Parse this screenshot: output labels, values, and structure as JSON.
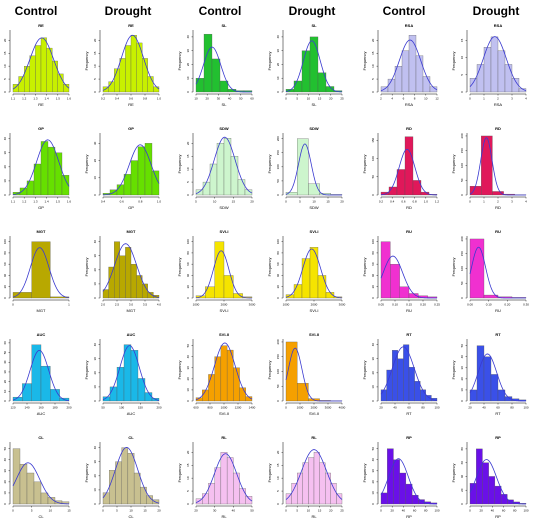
{
  "headers": [
    "Control",
    "Drought",
    "Control",
    "Drought",
    "Control",
    "Drought"
  ],
  "chart_data": [
    {
      "type": "histogram",
      "title": "RE",
      "xlabel": "RE",
      "ylabel": "Frequency",
      "color": "#c8f000",
      "xticks": [
        "1.1",
        "1.2",
        "1.3",
        "1.4",
        "1.5",
        "1.6"
      ],
      "yticks": [
        "0",
        "5",
        "10",
        "15",
        "20"
      ],
      "ylim": [
        0,
        24
      ],
      "values": [
        3,
        6,
        10,
        14,
        18,
        21,
        17,
        12,
        7,
        3
      ]
    },
    {
      "type": "histogram",
      "title": "RE",
      "xlabel": "RE",
      "ylabel": "Frequency",
      "color": "#c8f000",
      "xticks": [
        "0.2",
        "0.4",
        "0.6",
        "0.8",
        "1.0"
      ],
      "yticks": [
        "0",
        "5",
        "10",
        "15",
        "20"
      ],
      "ylim": [
        0,
        24
      ],
      "values": [
        2,
        4,
        9,
        13,
        18,
        22,
        19,
        13,
        6,
        2
      ]
    },
    {
      "type": "histogram",
      "title": "SL",
      "xlabel": "SL",
      "ylabel": "Frequency",
      "color": "#22c030",
      "xticks": [
        "10",
        "20",
        "30",
        "40",
        "50",
        "60"
      ],
      "yticks": [
        "0",
        "10",
        "20",
        "30",
        "40"
      ],
      "ylim": [
        0,
        45
      ],
      "values": [
        10,
        42,
        24,
        8,
        2,
        1,
        1
      ]
    },
    {
      "type": "histogram",
      "title": "SL",
      "xlabel": "SL",
      "ylabel": "Frequency",
      "color": "#22c030",
      "xticks": [
        "0",
        "5",
        "10",
        "15",
        "20",
        "25"
      ],
      "yticks": [
        "0",
        "10",
        "20",
        "30",
        "40"
      ],
      "ylim": [
        0,
        45
      ],
      "values": [
        2,
        8,
        30,
        40,
        14,
        4,
        1
      ]
    },
    {
      "type": "histogram",
      "title": "RSA",
      "xlabel": "RSA",
      "ylabel": "Frequency",
      "color": "#c0c0f0",
      "xticks": [
        "2",
        "4",
        "6",
        "8",
        "10",
        "12"
      ],
      "yticks": [
        "0",
        "5",
        "10",
        "15",
        "20"
      ],
      "ylim": [
        0,
        24
      ],
      "values": [
        2,
        5,
        10,
        16,
        22,
        14,
        6,
        2
      ]
    },
    {
      "type": "histogram",
      "title": "RSA",
      "xlabel": "RSA",
      "ylabel": "Frequency",
      "color": "#c0c0f0",
      "xticks": [
        "0",
        "1",
        "2",
        "3",
        "4"
      ],
      "yticks": [
        "0",
        "5",
        "10",
        "15"
      ],
      "ylim": [
        0,
        18
      ],
      "values": [
        4,
        8,
        13,
        16,
        12,
        8,
        4,
        1
      ]
    },
    {
      "type": "histogram",
      "title": "GP",
      "xlabel": "GP",
      "ylabel": "Frequency",
      "color": "#66e000",
      "xticks": [
        "1.1",
        "1.2",
        "1.3",
        "1.4",
        "1.5",
        "1.6"
      ],
      "yticks": [
        "0",
        "10",
        "20",
        "30",
        "40"
      ],
      "ylim": [
        0,
        44
      ],
      "values": [
        2,
        5,
        10,
        22,
        38,
        34,
        30,
        14
      ]
    },
    {
      "type": "histogram",
      "title": "GP",
      "xlabel": "GP",
      "ylabel": "Frequency",
      "color": "#66e000",
      "xticks": [
        "0.4",
        "0.6",
        "0.8",
        "1.0"
      ],
      "yticks": [
        "0",
        "10",
        "20",
        "30"
      ],
      "ylim": [
        0,
        36
      ],
      "values": [
        1,
        3,
        6,
        12,
        20,
        28,
        30,
        14
      ]
    },
    {
      "type": "histogram",
      "title": "SDW",
      "xlabel": "SDW",
      "ylabel": "Frequency",
      "color": "#cdf5cd",
      "xticks": [
        "5",
        "10",
        "15",
        "20"
      ],
      "yticks": [
        "0",
        "5",
        "10",
        "15",
        "20"
      ],
      "ylim": [
        0,
        24
      ],
      "values": [
        2,
        5,
        12,
        20,
        22,
        15,
        6,
        2
      ]
    },
    {
      "type": "histogram",
      "title": "SDW",
      "xlabel": "SDW",
      "ylabel": "Frequency",
      "color": "#cdf5cd",
      "xticks": [
        "0",
        "5",
        "10",
        "15",
        "20"
      ],
      "yticks": [
        "0",
        "50",
        "100",
        "150",
        "200"
      ],
      "ylim": [
        0,
        220
      ],
      "values": [
        10,
        200,
        40,
        6,
        2
      ]
    },
    {
      "type": "histogram",
      "title": "RD",
      "xlabel": "RD",
      "ylabel": "Frequency",
      "color": "#e0185a",
      "xticks": [
        "0.2",
        "0.4",
        "0.6",
        "0.8",
        "1.0",
        "1.2"
      ],
      "yticks": [
        "0",
        "50",
        "100",
        "150"
      ],
      "ylim": [
        0,
        170
      ],
      "values": [
        8,
        22,
        70,
        160,
        40,
        8,
        2
      ]
    },
    {
      "type": "histogram",
      "title": "RD",
      "xlabel": "RD",
      "ylabel": "Frequency",
      "color": "#e0185a",
      "xticks": [
        "0",
        "1",
        "2",
        "3",
        "4"
      ],
      "yticks": [
        "0",
        "50",
        "100",
        "150",
        "200"
      ],
      "ylim": [
        0,
        210
      ],
      "values": [
        30,
        200,
        12,
        3,
        1
      ]
    },
    {
      "type": "histogram",
      "title": "MGT",
      "xlabel": "MGT",
      "ylabel": "Frequency",
      "color": "#b8a800",
      "xticks": [
        "0",
        "1"
      ],
      "yticks": [
        "0",
        "20",
        "40",
        "60",
        "80",
        "100"
      ],
      "ylim": [
        0,
        110
      ],
      "values": [
        10,
        100,
        2
      ]
    },
    {
      "type": "histogram",
      "title": "MGT",
      "xlabel": "MGT",
      "ylabel": "Frequency",
      "color": "#b8a800",
      "xticks": [
        "2.0",
        "2.5",
        "3.0",
        "3.5",
        "4.0"
      ],
      "yticks": [
        "0",
        "10",
        "20",
        "30",
        "40"
      ],
      "ylim": [
        0,
        44
      ],
      "values": [
        6,
        22,
        40,
        30,
        36,
        24,
        16,
        10,
        4,
        2
      ]
    },
    {
      "type": "histogram",
      "title": "SVI-I",
      "xlabel": "SVI-I",
      "ylabel": "Frequency",
      "color": "#f5e400",
      "xticks": [
        "1000",
        "2000",
        "3000"
      ],
      "yticks": [
        "0",
        "20",
        "40",
        "60",
        "80",
        "100"
      ],
      "ylim": [
        0,
        110
      ],
      "values": [
        4,
        20,
        100,
        40,
        8,
        2
      ]
    },
    {
      "type": "histogram",
      "title": "SVI-I",
      "xlabel": "SVI-I",
      "ylabel": "Frequency",
      "color": "#f5e400",
      "xticks": [
        "1000",
        "2000",
        "3000"
      ],
      "yticks": [
        "0",
        "20",
        "40",
        "60",
        "80",
        "100"
      ],
      "ylim": [
        0,
        110
      ],
      "values": [
        6,
        24,
        70,
        90,
        40,
        10,
        2
      ]
    },
    {
      "type": "histogram",
      "title": "RU",
      "xlabel": "RU",
      "ylabel": "Frequency",
      "color": "#f030d0",
      "xticks": [
        "0.05",
        "0.10",
        "0.15",
        "0.20",
        "0.25"
      ],
      "yticks": [
        "0",
        "20",
        "40",
        "60",
        "80",
        "100"
      ],
      "ylim": [
        0,
        110
      ],
      "values": [
        100,
        60,
        20,
        8,
        4,
        2
      ]
    },
    {
      "type": "histogram",
      "title": "RU",
      "xlabel": "RU",
      "ylabel": "Frequency",
      "color": "#f030d0",
      "xticks": [
        "0.00",
        "0.10",
        "0.20",
        "0.30"
      ],
      "yticks": [
        "0",
        "50",
        "100",
        "150",
        "200"
      ],
      "ylim": [
        0,
        210
      ],
      "values": [
        200,
        10,
        4,
        2
      ]
    },
    {
      "type": "histogram",
      "title": "AUC",
      "xlabel": "AUC",
      "ylabel": "Frequency",
      "color": "#1ab8e8",
      "xticks": [
        "120",
        "140",
        "160",
        "180",
        "200"
      ],
      "yticks": [
        "0",
        "10",
        "20",
        "30",
        "40",
        "50",
        "60"
      ],
      "ylim": [
        0,
        64
      ],
      "values": [
        4,
        18,
        58,
        36,
        12,
        3
      ]
    },
    {
      "type": "histogram",
      "title": "AUC",
      "xlabel": "AUC",
      "ylabel": "Frequency",
      "color": "#1ab8e8",
      "xticks": [
        "50",
        "100",
        "150",
        "200"
      ],
      "yticks": [
        "0",
        "10",
        "20",
        "30",
        "40"
      ],
      "ylim": [
        0,
        44
      ],
      "values": [
        3,
        10,
        24,
        40,
        36,
        16,
        6,
        2
      ]
    },
    {
      "type": "histogram",
      "title": "SVI-II",
      "xlabel": "SVI-II",
      "ylabel": "Frequency",
      "color": "#f5a000",
      "xticks": [
        "600",
        "800",
        "1000",
        "1200",
        "1400"
      ],
      "yticks": [
        "0",
        "10",
        "20",
        "30",
        "40",
        "50"
      ],
      "ylim": [
        0,
        56
      ],
      "values": [
        3,
        10,
        24,
        40,
        50,
        46,
        30,
        12,
        4
      ]
    },
    {
      "type": "histogram",
      "title": "SVI-II",
      "xlabel": "SVI-II",
      "ylabel": "Frequency",
      "color": "#f5a000",
      "xticks": [
        "0",
        "1000",
        "2000",
        "3000",
        "4000"
      ],
      "yticks": [
        "0",
        "50",
        "100",
        "150",
        "200"
      ],
      "ylim": [
        0,
        210
      ],
      "values": [
        200,
        60,
        8,
        2,
        1
      ]
    },
    {
      "type": "histogram",
      "title": "RT",
      "xlabel": "RT",
      "ylabel": "Frequency",
      "color": "#3a50e8",
      "xticks": [
        "20",
        "40",
        "60",
        "80",
        "100"
      ],
      "yticks": [
        "0",
        "10",
        "20",
        "30",
        "40"
      ],
      "ylim": [
        0,
        44
      ],
      "values": [
        8,
        22,
        36,
        30,
        40,
        24,
        14,
        8,
        4,
        2
      ]
    },
    {
      "type": "histogram",
      "title": "RT",
      "xlabel": "RT",
      "ylabel": "Frequency",
      "color": "#3a50e8",
      "xticks": [
        "20",
        "40",
        "60",
        "80",
        "100"
      ],
      "yticks": [
        "0",
        "10",
        "20",
        "30",
        "40",
        "50"
      ],
      "ylim": [
        0,
        56
      ],
      "values": [
        10,
        50,
        40,
        24,
        10,
        4,
        2,
        1
      ]
    },
    {
      "type": "histogram",
      "title": "CL",
      "xlabel": "CL",
      "ylabel": "Frequency",
      "color": "#c8c090",
      "xticks": [
        "0",
        "5",
        "10",
        "15"
      ],
      "yticks": [
        "0",
        "10",
        "20",
        "30",
        "40",
        "50"
      ],
      "ylim": [
        0,
        56
      ],
      "values": [
        50,
        36,
        28,
        20,
        10,
        6,
        3,
        2
      ]
    },
    {
      "type": "histogram",
      "title": "CL",
      "xlabel": "CL",
      "ylabel": "Frequency",
      "color": "#c8c090",
      "xticks": [
        "0",
        "5",
        "10",
        "15",
        "20"
      ],
      "yticks": [
        "0",
        "10",
        "20",
        "30",
        "40"
      ],
      "ylim": [
        0,
        44
      ],
      "values": [
        8,
        24,
        30,
        40,
        36,
        22,
        12,
        6,
        3
      ]
    },
    {
      "type": "histogram",
      "title": "RL",
      "xlabel": "RL",
      "ylabel": "Frequency",
      "color": "#f5c0f0",
      "xticks": [
        "20",
        "30",
        "40",
        "50"
      ],
      "yticks": [
        "0",
        "5",
        "10",
        "15",
        "20"
      ],
      "ylim": [
        0,
        24
      ],
      "values": [
        2,
        4,
        8,
        14,
        20,
        18,
        12,
        6,
        3
      ]
    },
    {
      "type": "histogram",
      "title": "RL",
      "xlabel": "RL",
      "ylabel": "Frequency",
      "color": "#f5c0f0",
      "xticks": [
        "0",
        "5",
        "10",
        "15",
        "20",
        "25"
      ],
      "yticks": [
        "0",
        "5",
        "10",
        "15",
        "20"
      ],
      "ylim": [
        0,
        24
      ],
      "values": [
        4,
        8,
        12,
        16,
        18,
        20,
        16,
        12,
        8,
        4
      ]
    },
    {
      "type": "histogram",
      "title": "RP",
      "xlabel": "RP",
      "ylabel": "Frequency",
      "color": "#6a10e8",
      "xticks": [
        "0",
        "20",
        "40",
        "60",
        "80",
        "100"
      ],
      "yticks": [
        "0",
        "10",
        "20",
        "30",
        "40",
        "50"
      ],
      "ylim": [
        0,
        56
      ],
      "values": [
        10,
        50,
        40,
        28,
        18,
        8,
        4,
        2,
        1
      ]
    },
    {
      "type": "histogram",
      "title": "RP",
      "xlabel": "RP",
      "ylabel": "Frequency",
      "color": "#6a10e8",
      "xticks": [
        "0",
        "20",
        "40",
        "60",
        "80",
        "100"
      ],
      "yticks": [
        "0",
        "20",
        "40",
        "60",
        "80"
      ],
      "ylim": [
        0,
        90
      ],
      "values": [
        30,
        80,
        60,
        40,
        26,
        14,
        6,
        3,
        1
      ]
    }
  ]
}
